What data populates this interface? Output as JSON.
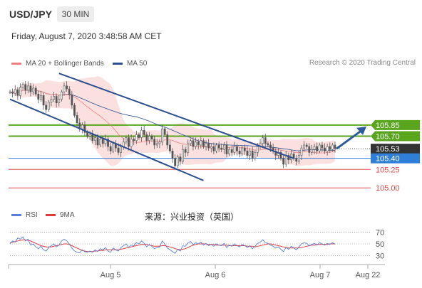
{
  "header": {
    "symbol": "USD/JPY",
    "timeframe": "30 MIN",
    "datetime": "Friday, August 7, 2020 3:48:58 AM CET"
  },
  "credit": "Research © 2020 Trading Central",
  "source_note": "来源：兴业投资（英国）",
  "colors": {
    "price_candles": "#555555",
    "ma20_bollinger": "#f08080",
    "ma50": "#2c4f8f",
    "bollinger_fill": "#fbe0e0",
    "trend_channel": "#2c4f8f",
    "resistance": "#5aa51e",
    "support_blue": "#2f7fd9",
    "support_red": "#e04a4a",
    "current_price": "#333333",
    "rsi": "#5b7fd8",
    "rsi_ma": "#e03a3a",
    "arrow": "#2c5b9c"
  },
  "chart_data": [
    {
      "type": "candlestick",
      "title": "",
      "series": [
        {
          "name": "MA 20 + Bollinger Bands"
        },
        {
          "name": "MA 50"
        }
      ],
      "price_levels": [
        {
          "value": 105.85,
          "label": "105.85",
          "style": "resistance"
        },
        {
          "value": 105.7,
          "label": "105.70",
          "style": "resistance"
        },
        {
          "value": 105.53,
          "label": "105.53",
          "style": "current"
        },
        {
          "value": 105.4,
          "label": "105.40",
          "style": "support_blue"
        },
        {
          "value": 105.25,
          "label": "105.25",
          "style": "support_red"
        },
        {
          "value": 105.0,
          "label": "105.00",
          "style": "support_red"
        }
      ],
      "x_ticks": [
        "Aug 5",
        "Aug 6",
        "Aug 7",
        "Aug 22"
      ],
      "ylim": [
        104.8,
        106.6
      ],
      "close": [
        106.3,
        106.28,
        106.33,
        106.25,
        106.36,
        106.4,
        106.32,
        106.38,
        106.3,
        106.35,
        106.27,
        106.2,
        106.25,
        106.12,
        106.06,
        106.16,
        106.2,
        106.24,
        106.15,
        106.2,
        106.3,
        106.38,
        106.34,
        106.26,
        106.12,
        105.98,
        105.88,
        105.8,
        105.85,
        105.75,
        105.7,
        105.72,
        105.64,
        105.68,
        105.58,
        105.66,
        105.6,
        105.66,
        105.56,
        105.5,
        105.6,
        105.54,
        105.48,
        105.56,
        105.62,
        105.68,
        105.56,
        105.66,
        105.64,
        105.72,
        105.68,
        105.78,
        105.72,
        105.64,
        105.7,
        105.66,
        105.58,
        105.6,
        105.62,
        105.8,
        105.72,
        105.58,
        105.5,
        105.4,
        105.3,
        105.42,
        105.36,
        105.52,
        105.48,
        105.6,
        105.64,
        105.56,
        105.62,
        105.58,
        105.64,
        105.56,
        105.6,
        105.54,
        105.56,
        105.5,
        105.58,
        105.54,
        105.52,
        105.58,
        105.46,
        105.52,
        105.48,
        105.56,
        105.5,
        105.46,
        105.54,
        105.5,
        105.44,
        105.5,
        105.4,
        105.48,
        105.56,
        105.6,
        105.68,
        105.6,
        105.58,
        105.54,
        105.5,
        105.44,
        105.48,
        105.4,
        105.32,
        105.44,
        105.38,
        105.46,
        105.4,
        105.36,
        105.44,
        105.54,
        105.58,
        105.56,
        105.48,
        105.52,
        105.56,
        105.5,
        105.58,
        105.54,
        105.5,
        105.56,
        105.52,
        105.58,
        105.53
      ],
      "rsi_ylim": [
        20,
        80
      ],
      "rsi_levels": [
        70,
        50,
        30
      ],
      "rsi": [
        50,
        55,
        53,
        60,
        58,
        62,
        55,
        58,
        48,
        50,
        45,
        42,
        46,
        40,
        38,
        44,
        47,
        50,
        45,
        48,
        55,
        58,
        55,
        50,
        43,
        38,
        36,
        35,
        40,
        37,
        36,
        38,
        36,
        40,
        37,
        42,
        40,
        44,
        38,
        36,
        43,
        40,
        38,
        44,
        47,
        50,
        44,
        48,
        47,
        52,
        50,
        55,
        51,
        45,
        49,
        46,
        42,
        44,
        45,
        55,
        50,
        43,
        40,
        37,
        34,
        41,
        38,
        47,
        46,
        52,
        54,
        49,
        52,
        50,
        53,
        48,
        51,
        47,
        49,
        46,
        50,
        48,
        47,
        51,
        44,
        48,
        46,
        50,
        47,
        45,
        49,
        47,
        44,
        47,
        42,
        46,
        51,
        53,
        57,
        52,
        51,
        48,
        46,
        43,
        45,
        41,
        37,
        44,
        41,
        46,
        43,
        40,
        45,
        50,
        52,
        51,
        47,
        49,
        51,
        48,
        52,
        50,
        48,
        51,
        49,
        52,
        50
      ],
      "rsi_ma": [
        52,
        53,
        54,
        55,
        56,
        57,
        57,
        56,
        55,
        53,
        51,
        49,
        47,
        46,
        45,
        45,
        45,
        46,
        47,
        48,
        49,
        50,
        50,
        49,
        47,
        45,
        43,
        41,
        39,
        38,
        37,
        37,
        37,
        38,
        38,
        39,
        39,
        40,
        40,
        40,
        40,
        40,
        40,
        41,
        42,
        43,
        44,
        45,
        46,
        47,
        48,
        49,
        49,
        49,
        48,
        47,
        46,
        46,
        46,
        47,
        47,
        46,
        45,
        44,
        42,
        41,
        40,
        41,
        42,
        44,
        46,
        48,
        49,
        50,
        50,
        50,
        50,
        49,
        49,
        49,
        48,
        48,
        48,
        48,
        48,
        47,
        47,
        47,
        47,
        47,
        47,
        47,
        46,
        46,
        46,
        45,
        46,
        47,
        48,
        49,
        50,
        50,
        49,
        48,
        47,
        46,
        45,
        44,
        43,
        43,
        43,
        43,
        43,
        44,
        45,
        46,
        47,
        48,
        48,
        49,
        49,
        49,
        49,
        49,
        50,
        50,
        50
      ]
    }
  ]
}
